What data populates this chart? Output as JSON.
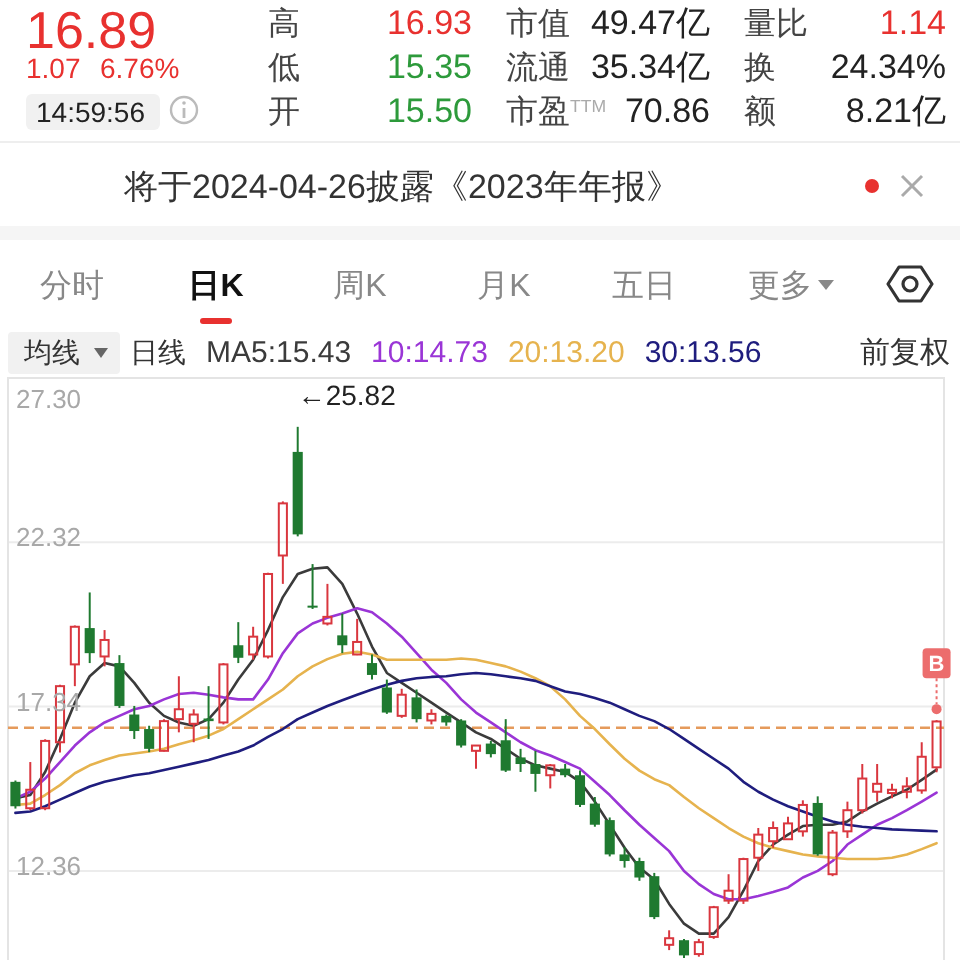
{
  "chart_data": {
    "type": "candlestick",
    "categories": [
      null,
      null,
      null,
      null,
      null,
      null,
      null,
      null,
      null,
      null,
      null,
      null,
      null,
      null,
      null,
      null,
      null,
      null,
      null,
      null,
      null,
      null,
      null,
      null,
      null,
      null,
      null,
      null,
      null,
      null,
      null,
      null,
      null,
      null,
      null,
      null,
      null,
      null,
      null,
      null,
      null,
      null,
      null,
      null,
      null,
      null,
      null,
      null,
      null,
      null,
      null,
      null,
      null,
      null,
      null,
      null,
      null,
      null,
      null,
      null,
      null,
      null,
      null
    ],
    "ohlc": [
      [
        15.06,
        15.1,
        14.25,
        14.32
      ],
      [
        14.26,
        15.66,
        14.2,
        14.82
      ],
      [
        14.26,
        16.35,
        14.2,
        16.3
      ],
      [
        16.26,
        18.0,
        15.95,
        17.96
      ],
      [
        18.62,
        19.8,
        17.96,
        19.76
      ],
      [
        19.72,
        20.8,
        18.66,
        18.96
      ],
      [
        18.86,
        19.66,
        18.56,
        19.36
      ],
      [
        18.66,
        18.9,
        17.3,
        17.36
      ],
      [
        17.1,
        17.36,
        16.36,
        16.6
      ],
      [
        16.66,
        16.76,
        15.96,
        16.06
      ],
      [
        16.0,
        16.96,
        15.98,
        16.9
      ],
      [
        16.96,
        18.26,
        16.56,
        17.26
      ],
      [
        16.82,
        17.26,
        16.26,
        17.1
      ],
      [
        16.98,
        17.96,
        16.36,
        16.9
      ],
      [
        16.86,
        18.66,
        16.8,
        18.62
      ],
      [
        19.2,
        19.9,
        18.66,
        18.82
      ],
      [
        18.92,
        19.76,
        18.76,
        19.46
      ],
      [
        18.86,
        21.4,
        18.8,
        21.36
      ],
      [
        21.92,
        23.56,
        21.06,
        23.5
      ],
      [
        25.06,
        25.82,
        22.5,
        22.56
      ],
      [
        20.4,
        21.66,
        20.3,
        20.36
      ],
      [
        19.86,
        21.06,
        19.8,
        20.06
      ],
      [
        19.5,
        20.16,
        18.96,
        19.2
      ],
      [
        18.92,
        20.0,
        18.9,
        19.3
      ],
      [
        18.66,
        18.92,
        18.16,
        18.3
      ],
      [
        17.92,
        18.16,
        17.12,
        17.16
      ],
      [
        17.06,
        17.88,
        17.0,
        17.7
      ],
      [
        17.62,
        17.86,
        16.86,
        16.96
      ],
      [
        16.92,
        17.26,
        16.8,
        17.12
      ],
      [
        17.06,
        17.1,
        16.76,
        16.86
      ],
      [
        16.92,
        16.96,
        16.1,
        16.16
      ],
      [
        16.0,
        16.18,
        15.46,
        16.16
      ],
      [
        16.22,
        16.3,
        15.8,
        15.9
      ],
      [
        16.32,
        16.96,
        15.36,
        15.4
      ],
      [
        15.8,
        16.06,
        15.36,
        15.6
      ],
      [
        15.6,
        16.0,
        14.76,
        15.3
      ],
      [
        15.26,
        15.6,
        14.86,
        15.56
      ],
      [
        15.46,
        15.6,
        15.2,
        15.26
      ],
      [
        15.26,
        15.4,
        14.3,
        14.36
      ],
      [
        14.4,
        14.6,
        13.7,
        13.76
      ],
      [
        13.9,
        13.98,
        12.8,
        12.86
      ],
      [
        12.86,
        13.08,
        12.46,
        12.66
      ],
      [
        12.66,
        12.76,
        12.06,
        12.16
      ],
      [
        12.2,
        12.3,
        10.9,
        10.96
      ],
      [
        10.12,
        10.56,
        9.96,
        10.32
      ],
      [
        10.26,
        10.3,
        9.72,
        9.8
      ],
      [
        9.84,
        10.3,
        9.76,
        10.2
      ],
      [
        10.36,
        11.3,
        10.3,
        11.26
      ],
      [
        11.46,
        12.26,
        11.36,
        11.76
      ],
      [
        11.46,
        12.76,
        11.36,
        12.72
      ],
      [
        12.76,
        13.66,
        12.36,
        13.46
      ],
      [
        13.26,
        13.86,
        13.06,
        13.66
      ],
      [
        13.32,
        14.0,
        13.3,
        13.8
      ],
      [
        13.56,
        14.5,
        13.4,
        14.36
      ],
      [
        14.42,
        14.62,
        12.82,
        12.86
      ],
      [
        12.26,
        13.6,
        12.2,
        13.52
      ],
      [
        13.56,
        14.46,
        13.36,
        14.2
      ],
      [
        14.2,
        15.6,
        14.1,
        15.16
      ],
      [
        14.76,
        15.6,
        14.46,
        15.0
      ],
      [
        14.72,
        15.0,
        14.56,
        14.82
      ],
      [
        14.76,
        15.2,
        14.56,
        14.92
      ],
      [
        14.8,
        16.26,
        14.7,
        15.82
      ],
      [
        15.5,
        16.93,
        15.35,
        16.89
      ]
    ],
    "colors": [
      "#1f7a30",
      "#d9363e",
      "#d9363e",
      "#d9363e",
      "#d9363e",
      "#1f7a30",
      "#d9363e",
      "#1f7a30",
      "#1f7a30",
      "#1f7a30",
      "#d9363e",
      "#d9363e",
      "#d9363e",
      "#1f7a30",
      "#d9363e",
      "#1f7a30",
      "#d9363e",
      "#d9363e",
      "#d9363e",
      "#1f7a30",
      "#1f7a30",
      "#d9363e",
      "#1f7a30",
      "#d9363e",
      "#1f7a30",
      "#1f7a30",
      "#d9363e",
      "#1f7a30",
      "#d9363e",
      "#1f7a30",
      "#1f7a30",
      "#d9363e",
      "#1f7a30",
      "#1f7a30",
      "#1f7a30",
      "#1f7a30",
      "#d9363e",
      "#1f7a30",
      "#1f7a30",
      "#1f7a30",
      "#1f7a30",
      "#1f7a30",
      "#1f7a30",
      "#1f7a30",
      "#d9363e",
      "#1f7a30",
      "#d9363e",
      "#d9363e",
      "#d9363e",
      "#d9363e",
      "#d9363e",
      "#d9363e",
      "#d9363e",
      "#d9363e",
      "#1f7a30",
      "#d9363e",
      "#d9363e",
      "#d9363e",
      "#d9363e",
      "#d9363e",
      "#d9363e",
      "#d9363e",
      "#d9363e"
    ],
    "series": [
      {
        "name": "MA5:15.43",
        "type": "line",
        "color": "#3b3b3b",
        "values": [
          14.56,
          14.66,
          15.36,
          16.36,
          17.46,
          18.26,
          18.66,
          18.56,
          18.06,
          17.46,
          17.06,
          16.86,
          16.76,
          16.96,
          17.46,
          18.16,
          18.76,
          19.66,
          20.66,
          21.36,
          21.52,
          21.56,
          21.06,
          20.16,
          19.16,
          18.36,
          18.06,
          17.76,
          17.46,
          17.16,
          16.86,
          16.56,
          16.36,
          16.06,
          15.76,
          15.56,
          15.46,
          15.36,
          15.06,
          14.46,
          13.76,
          13.06,
          12.46,
          12.1,
          11.36,
          10.76,
          10.46,
          10.46,
          10.96,
          11.76,
          12.66,
          13.16,
          13.46,
          13.72,
          13.76,
          13.76,
          13.86,
          14.16,
          14.4,
          14.62,
          14.82,
          15.12,
          15.43
        ]
      },
      {
        "name": "10:14.73",
        "type": "line",
        "color": "#9a35d6",
        "values": [
          14.56,
          14.76,
          15.16,
          15.66,
          16.16,
          16.56,
          16.86,
          17.06,
          17.26,
          17.36,
          17.56,
          17.72,
          17.76,
          17.7,
          17.62,
          17.56,
          17.56,
          18.16,
          18.96,
          19.56,
          19.86,
          20.03,
          20.16,
          20.32,
          20.2,
          19.86,
          19.46,
          18.96,
          18.46,
          18.06,
          17.56,
          17.16,
          16.86,
          16.56,
          16.26,
          16.02,
          15.86,
          15.66,
          15.46,
          15.06,
          14.66,
          14.2,
          13.76,
          13.36,
          12.96,
          12.36,
          11.96,
          11.66,
          11.5,
          11.5,
          11.6,
          11.72,
          11.86,
          12.16,
          12.36,
          12.66,
          13.16,
          13.46,
          13.76,
          13.96,
          14.2,
          14.46,
          14.73
        ]
      },
      {
        "name": "20:13.20",
        "type": "line",
        "color": "#e6b34e",
        "values": [
          14.36,
          14.4,
          14.66,
          14.96,
          15.32,
          15.56,
          15.72,
          15.86,
          15.92,
          15.98,
          16.06,
          16.2,
          16.32,
          16.46,
          16.66,
          16.96,
          17.26,
          17.56,
          17.86,
          18.26,
          18.56,
          18.78,
          18.94,
          19.0,
          18.92,
          18.76,
          18.76,
          18.76,
          18.76,
          18.76,
          18.8,
          18.76,
          18.66,
          18.56,
          18.4,
          18.2,
          17.96,
          17.56,
          17.06,
          16.66,
          16.2,
          15.76,
          15.4,
          15.14,
          14.96,
          14.6,
          14.26,
          13.96,
          13.66,
          13.4,
          13.2,
          13.06,
          12.96,
          12.86,
          12.8,
          12.76,
          12.72,
          12.72,
          12.72,
          12.76,
          12.86,
          13.02,
          13.2
        ]
      },
      {
        "name": "30:13.56",
        "type": "line",
        "color": "#1f1d7e",
        "values": [
          14.12,
          14.16,
          14.32,
          14.52,
          14.72,
          14.92,
          15.06,
          15.16,
          15.26,
          15.32,
          15.42,
          15.52,
          15.62,
          15.72,
          15.86,
          15.98,
          16.16,
          16.42,
          16.66,
          16.96,
          17.16,
          17.36,
          17.53,
          17.7,
          17.86,
          18.0,
          18.12,
          18.2,
          18.24,
          18.26,
          18.32,
          18.36,
          18.32,
          18.26,
          18.2,
          18.12,
          17.96,
          17.8,
          17.72,
          17.6,
          17.46,
          17.26,
          17.06,
          16.9,
          16.66,
          16.36,
          16.06,
          15.76,
          15.46,
          15.06,
          14.76,
          14.52,
          14.32,
          14.16,
          14.0,
          13.86,
          13.76,
          13.7,
          13.66,
          13.62,
          13.6,
          13.58,
          13.56
        ]
      }
    ],
    "ylim": [
      9.66,
      27.3
    ],
    "yticks": [
      {
        "value": 27.3,
        "label": "27.30"
      },
      {
        "value": 22.32,
        "label": "22.32"
      },
      {
        "value": 17.34,
        "label": "17.34"
      },
      {
        "value": 12.36,
        "label": "12.36"
      }
    ],
    "grid": "y",
    "legend": "top left",
    "tick_labels": "y",
    "ref_lines": [
      {
        "axis": "y",
        "value": 16.7,
        "color": "#e59a5b",
        "line_style": "dashed"
      }
    ],
    "annotations": [
      "16.89",
      "高",
      "16.93",
      "市值",
      "49.47亿",
      "量比",
      "1.14",
      "1.07",
      "6.76%",
      "低",
      "15.35",
      "流通",
      "35.34亿",
      "换",
      "24.34%",
      "14:59:56",
      "开",
      "15.50",
      "市盈$^{TTM}$",
      "70.86",
      "额",
      "8.21亿",
      "将于2024-04-26披露《2023年年报》",
      "分时",
      "日K",
      "周K",
      "月K",
      "五日",
      "更多",
      "均线",
      "日线",
      "前复权",
      "←25.82",
      "B"
    ]
  }
}
